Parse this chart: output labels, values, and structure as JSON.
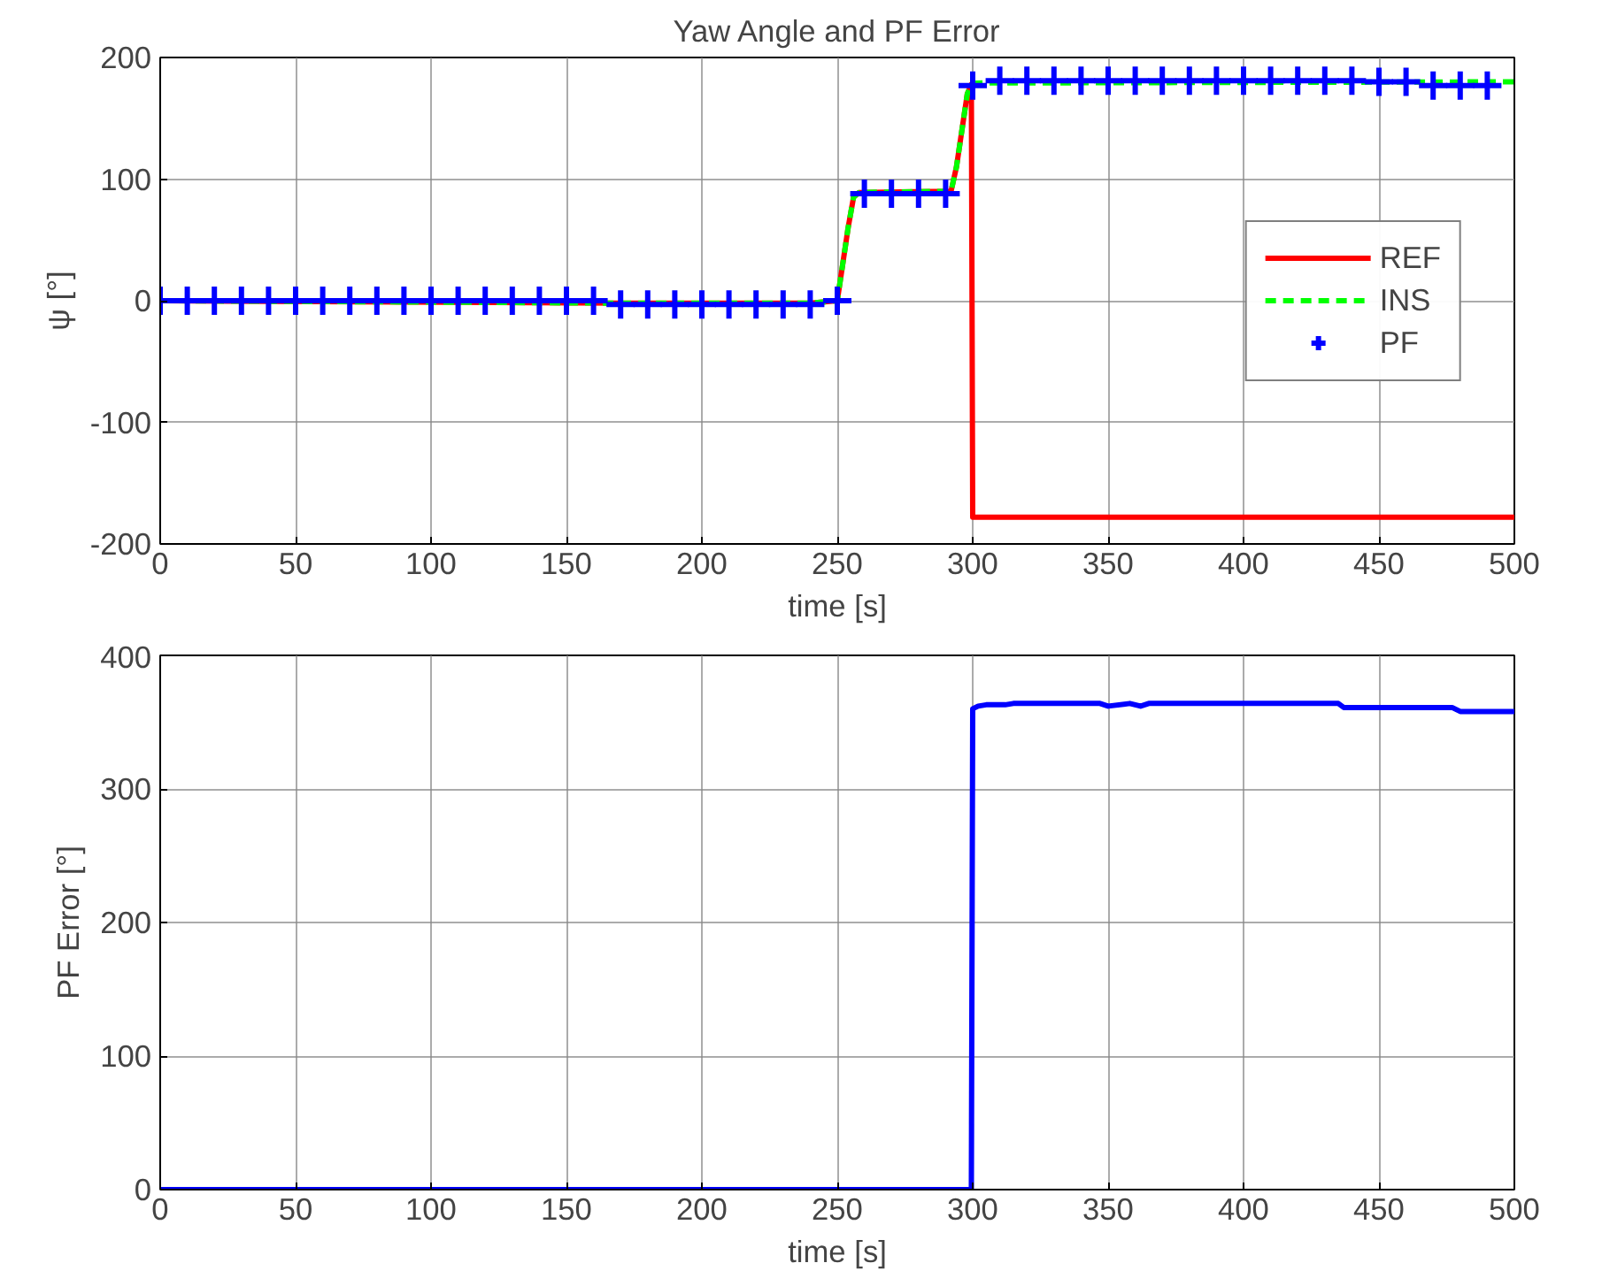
{
  "chart_data": [
    {
      "type": "line",
      "title": "Yaw Angle and PF Error",
      "xlabel": "time [s]",
      "ylabel": "ψ [°]",
      "xlim": [
        0,
        500
      ],
      "ylim": [
        -200,
        200
      ],
      "xticks": [
        0,
        50,
        100,
        150,
        200,
        250,
        300,
        350,
        400,
        450,
        500
      ],
      "yticks": [
        -200,
        -100,
        0,
        100,
        200
      ],
      "grid": true,
      "legend": "right",
      "series": [
        {
          "name": "REF",
          "color": "#ff0000",
          "line_style": "solid",
          "marker": "none",
          "x": [
            0,
            170,
            240,
            250,
            252,
            254,
            256,
            258,
            292,
            294,
            296,
            298,
            299.5,
            300,
            500
          ],
          "values": [
            0,
            -2,
            -2,
            0,
            30,
            60,
            85,
            89,
            90,
            110,
            140,
            170,
            178,
            -178,
            -178
          ]
        },
        {
          "name": "INS",
          "color": "#00ff00",
          "line_style": "dashed",
          "marker": "none",
          "x": [
            0,
            170,
            240,
            250,
            252,
            254,
            256,
            258,
            292,
            294,
            296,
            298,
            299.5,
            301,
            500
          ],
          "values": [
            0,
            -2,
            -2,
            0,
            30,
            60,
            85,
            89,
            90,
            110,
            140,
            170,
            178,
            179,
            180
          ]
        },
        {
          "name": "PF",
          "type": "scatter",
          "color": "#0000ff",
          "marker": "cross",
          "x": [
            0,
            10,
            20,
            30,
            40,
            50,
            60,
            70,
            80,
            90,
            100,
            110,
            120,
            130,
            140,
            150,
            160,
            170,
            180,
            190,
            200,
            210,
            220,
            230,
            240,
            250,
            260,
            270,
            280,
            290,
            300,
            310,
            320,
            330,
            340,
            350,
            360,
            370,
            380,
            390,
            400,
            410,
            420,
            430,
            440,
            450,
            460,
            470,
            480,
            490
          ],
          "values": [
            0,
            0,
            0,
            0,
            0,
            0,
            0,
            0,
            0,
            0,
            0,
            0,
            0,
            0,
            0,
            0,
            0,
            -3,
            -3,
            -3,
            -3,
            -3,
            -3,
            -3,
            -3,
            0,
            88,
            88,
            88,
            88,
            177,
            181,
            181,
            181,
            181,
            181,
            181,
            181,
            181,
            181,
            181,
            181,
            181,
            181,
            181,
            180,
            180,
            177,
            177,
            177
          ]
        }
      ]
    },
    {
      "type": "line",
      "xlabel": "time [s]",
      "ylabel": "PF Error [°]",
      "xlim": [
        0,
        500
      ],
      "ylim": [
        0,
        400
      ],
      "xticks": [
        0,
        50,
        100,
        150,
        200,
        250,
        300,
        350,
        400,
        450,
        500
      ],
      "yticks": [
        0,
        100,
        200,
        300,
        400
      ],
      "grid": true,
      "legend": false,
      "series": [
        {
          "color": "#0000ff",
          "line_style": "solid",
          "marker": "none",
          "x": [
            0,
            299.5,
            300,
            302,
            305,
            312,
            315,
            347,
            350,
            358,
            362,
            365,
            435,
            437,
            477,
            480,
            500
          ],
          "values": [
            0,
            0,
            360,
            362,
            363,
            363,
            364,
            364,
            362,
            364,
            362,
            364,
            364,
            361,
            361,
            358,
            358
          ]
        }
      ]
    }
  ]
}
